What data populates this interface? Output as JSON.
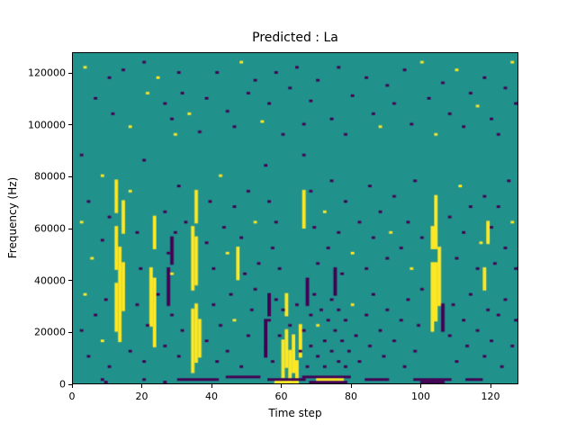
{
  "chart_data": {
    "type": "heatmap",
    "title": "Predicted : La",
    "xlabel": "Time step",
    "ylabel": "Frequency (Hz)",
    "x_range": [
      0,
      128
    ],
    "y_range": [
      0,
      128000
    ],
    "x_ticks": [
      0,
      20,
      40,
      60,
      80,
      100,
      120
    ],
    "y_ticks": [
      0,
      20000,
      40000,
      60000,
      80000,
      100000,
      120000
    ],
    "grid": false,
    "legend": "none",
    "colormap": "viridis-3-level",
    "n_time_steps": 128,
    "n_freq_bins": 128,
    "freq_bin_hz": 1000,
    "value_colors": {
      "0": "#21918c",
      "1": "#440154",
      "2": "#fde725"
    },
    "encoding": "background value 0 = teal; 1 = dark purple (min); 2 = yellow (max); runs_vertical = [x, bin_lo, bin_hi, v]; runs_horizontal = [x_lo, x_hi, bin, v]; cells = [x, bin, v]",
    "runs_vertical": [
      [
        12,
        20,
        38,
        2
      ],
      [
        12,
        44,
        60,
        2
      ],
      [
        12,
        66,
        78,
        2
      ],
      [
        13,
        16,
        52,
        2
      ],
      [
        14,
        28,
        46,
        2
      ],
      [
        14,
        58,
        70,
        2
      ],
      [
        22,
        22,
        44,
        2
      ],
      [
        23,
        14,
        40,
        2
      ],
      [
        23,
        52,
        64,
        2
      ],
      [
        34,
        4,
        28,
        2
      ],
      [
        34,
        36,
        60,
        2
      ],
      [
        35,
        8,
        30,
        2
      ],
      [
        35,
        38,
        56,
        2
      ],
      [
        35,
        62,
        74,
        2
      ],
      [
        36,
        10,
        24,
        2
      ],
      [
        47,
        40,
        52,
        2
      ],
      [
        60,
        2,
        16,
        2
      ],
      [
        61,
        6,
        20,
        2
      ],
      [
        61,
        26,
        34,
        2
      ],
      [
        62,
        0,
        12,
        2
      ],
      [
        63,
        4,
        18,
        2
      ],
      [
        64,
        0,
        8,
        2
      ],
      [
        65,
        10,
        22,
        2
      ],
      [
        66,
        60,
        74,
        2
      ],
      [
        103,
        20,
        46,
        2
      ],
      [
        103,
        52,
        60,
        2
      ],
      [
        104,
        24,
        46,
        2
      ],
      [
        104,
        52,
        72,
        2
      ],
      [
        105,
        30,
        52,
        2
      ],
      [
        118,
        36,
        44,
        2
      ],
      [
        119,
        54,
        62,
        2
      ],
      [
        27,
        30,
        44,
        1
      ],
      [
        28,
        46,
        56,
        1
      ],
      [
        55,
        10,
        24,
        1
      ],
      [
        56,
        26,
        34,
        1
      ],
      [
        67,
        30,
        40,
        1
      ],
      [
        75,
        34,
        44,
        1
      ],
      [
        106,
        20,
        30,
        1
      ]
    ],
    "runs_horizontal": [
      [
        30,
        41,
        1,
        1
      ],
      [
        44,
        53,
        2,
        1
      ],
      [
        56,
        66,
        1,
        1
      ],
      [
        58,
        64,
        0,
        2
      ],
      [
        66,
        79,
        2,
        1
      ],
      [
        68,
        78,
        0,
        1
      ],
      [
        70,
        77,
        1,
        2
      ],
      [
        84,
        90,
        1,
        1
      ],
      [
        98,
        108,
        1,
        1
      ],
      [
        100,
        106,
        0,
        1
      ],
      [
        113,
        117,
        1,
        1
      ]
    ],
    "cells": [
      [
        3,
        122,
        2
      ],
      [
        6,
        110,
        1
      ],
      [
        10,
        118,
        1
      ],
      [
        11,
        104,
        1
      ],
      [
        14,
        121,
        1
      ],
      [
        16,
        99,
        2
      ],
      [
        20,
        124,
        1
      ],
      [
        21,
        112,
        2
      ],
      [
        24,
        118,
        2
      ],
      [
        26,
        108,
        1
      ],
      [
        28,
        102,
        1
      ],
      [
        29,
        96,
        2
      ],
      [
        30,
        120,
        1
      ],
      [
        31,
        112,
        1
      ],
      [
        33,
        104,
        2
      ],
      [
        36,
        97,
        1
      ],
      [
        38,
        110,
        1
      ],
      [
        41,
        120,
        1
      ],
      [
        44,
        105,
        1
      ],
      [
        46,
        99,
        1
      ],
      [
        48,
        124,
        2
      ],
      [
        50,
        112,
        1
      ],
      [
        52,
        117,
        1
      ],
      [
        54,
        101,
        2
      ],
      [
        56,
        108,
        1
      ],
      [
        58,
        120,
        1
      ],
      [
        60,
        96,
        1
      ],
      [
        62,
        114,
        1
      ],
      [
        64,
        122,
        1
      ],
      [
        66,
        100,
        1
      ],
      [
        68,
        109,
        1
      ],
      [
        70,
        117,
        1
      ],
      [
        74,
        102,
        1
      ],
      [
        76,
        122,
        1
      ],
      [
        78,
        96,
        1
      ],
      [
        80,
        111,
        1
      ],
      [
        84,
        118,
        1
      ],
      [
        86,
        104,
        1
      ],
      [
        88,
        99,
        2
      ],
      [
        90,
        115,
        1
      ],
      [
        92,
        108,
        1
      ],
      [
        95,
        121,
        1
      ],
      [
        97,
        100,
        1
      ],
      [
        100,
        124,
        2
      ],
      [
        102,
        110,
        1
      ],
      [
        104,
        96,
        2
      ],
      [
        106,
        116,
        1
      ],
      [
        108,
        104,
        1
      ],
      [
        110,
        121,
        2
      ],
      [
        112,
        99,
        1
      ],
      [
        114,
        112,
        1
      ],
      [
        116,
        107,
        2
      ],
      [
        118,
        118,
        1
      ],
      [
        120,
        102,
        1
      ],
      [
        122,
        96,
        1
      ],
      [
        124,
        114,
        1
      ],
      [
        126,
        124,
        2
      ],
      [
        127,
        108,
        1
      ],
      [
        2,
        88,
        1
      ],
      [
        2,
        62,
        2
      ],
      [
        4,
        70,
        1
      ],
      [
        5,
        48,
        2
      ],
      [
        8,
        80,
        2
      ],
      [
        8,
        55,
        1
      ],
      [
        10,
        64,
        1
      ],
      [
        16,
        74,
        2
      ],
      [
        18,
        58,
        1
      ],
      [
        19,
        44,
        1
      ],
      [
        20,
        86,
        1
      ],
      [
        26,
        66,
        1
      ],
      [
        27,
        50,
        1
      ],
      [
        28,
        42,
        2
      ],
      [
        29,
        58,
        1
      ],
      [
        30,
        76,
        1
      ],
      [
        32,
        62,
        1
      ],
      [
        38,
        54,
        1
      ],
      [
        39,
        70,
        1
      ],
      [
        40,
        44,
        1
      ],
      [
        42,
        80,
        2
      ],
      [
        43,
        60,
        1
      ],
      [
        44,
        50,
        2
      ],
      [
        46,
        68,
        1
      ],
      [
        48,
        56,
        1
      ],
      [
        49,
        42,
        1
      ],
      [
        50,
        74,
        1
      ],
      [
        52,
        62,
        2
      ],
      [
        53,
        46,
        1
      ],
      [
        55,
        84,
        1
      ],
      [
        56,
        70,
        1
      ],
      [
        57,
        52,
        1
      ],
      [
        58,
        62,
        1
      ],
      [
        59,
        44,
        1
      ],
      [
        66,
        88,
        1
      ],
      [
        68,
        74,
        1
      ],
      [
        69,
        60,
        1
      ],
      [
        70,
        46,
        1
      ],
      [
        72,
        66,
        2
      ],
      [
        73,
        52,
        1
      ],
      [
        74,
        78,
        1
      ],
      [
        76,
        58,
        1
      ],
      [
        77,
        42,
        1
      ],
      [
        78,
        70,
        1
      ],
      [
        80,
        50,
        2
      ],
      [
        82,
        62,
        1
      ],
      [
        84,
        44,
        1
      ],
      [
        85,
        76,
        1
      ],
      [
        86,
        56,
        1
      ],
      [
        88,
        66,
        1
      ],
      [
        90,
        48,
        1
      ],
      [
        91,
        58,
        2
      ],
      [
        92,
        72,
        1
      ],
      [
        94,
        52,
        1
      ],
      [
        96,
        62,
        1
      ],
      [
        97,
        44,
        2
      ],
      [
        98,
        78,
        1
      ],
      [
        100,
        56,
        1
      ],
      [
        108,
        64,
        1
      ],
      [
        110,
        48,
        1
      ],
      [
        111,
        76,
        2
      ],
      [
        112,
        58,
        1
      ],
      [
        114,
        68,
        1
      ],
      [
        116,
        44,
        1
      ],
      [
        117,
        54,
        2
      ],
      [
        118,
        72,
        1
      ],
      [
        120,
        60,
        1
      ],
      [
        121,
        46,
        1
      ],
      [
        122,
        68,
        1
      ],
      [
        124,
        52,
        1
      ],
      [
        125,
        78,
        1
      ],
      [
        126,
        62,
        2
      ],
      [
        127,
        44,
        1
      ],
      [
        2,
        20,
        1
      ],
      [
        3,
        34,
        2
      ],
      [
        4,
        10,
        1
      ],
      [
        6,
        26,
        1
      ],
      [
        8,
        16,
        2
      ],
      [
        9,
        32,
        1
      ],
      [
        10,
        6,
        1
      ],
      [
        16,
        12,
        1
      ],
      [
        18,
        30,
        1
      ],
      [
        20,
        8,
        1
      ],
      [
        21,
        22,
        1
      ],
      [
        24,
        34,
        1
      ],
      [
        26,
        14,
        1
      ],
      [
        28,
        26,
        1
      ],
      [
        30,
        10,
        1
      ],
      [
        31,
        20,
        1
      ],
      [
        38,
        16,
        1
      ],
      [
        40,
        30,
        1
      ],
      [
        41,
        8,
        1
      ],
      [
        42,
        22,
        1
      ],
      [
        44,
        12,
        1
      ],
      [
        45,
        34,
        1
      ],
      [
        46,
        24,
        2
      ],
      [
        48,
        6,
        1
      ],
      [
        50,
        18,
        1
      ],
      [
        51,
        28,
        1
      ],
      [
        52,
        36,
        1
      ],
      [
        55,
        14,
        1
      ],
      [
        56,
        24,
        1
      ],
      [
        57,
        8,
        1
      ],
      [
        58,
        32,
        1
      ],
      [
        59,
        18,
        1
      ],
      [
        60,
        28,
        1
      ],
      [
        62,
        22,
        1
      ],
      [
        64,
        30,
        1
      ],
      [
        65,
        12,
        1
      ],
      [
        66,
        20,
        1
      ],
      [
        67,
        6,
        1
      ],
      [
        68,
        26,
        1
      ],
      [
        68,
        14,
        1
      ],
      [
        69,
        34,
        1
      ],
      [
        70,
        10,
        1
      ],
      [
        70,
        22,
        2
      ],
      [
        71,
        28,
        1
      ],
      [
        72,
        16,
        1
      ],
      [
        72,
        6,
        1
      ],
      [
        73,
        24,
        1
      ],
      [
        74,
        12,
        1
      ],
      [
        74,
        32,
        1
      ],
      [
        75,
        20,
        1
      ],
      [
        76,
        8,
        1
      ],
      [
        76,
        28,
        1
      ],
      [
        77,
        16,
        1
      ],
      [
        78,
        24,
        1
      ],
      [
        78,
        6,
        1
      ],
      [
        79,
        12,
        1
      ],
      [
        80,
        30,
        2
      ],
      [
        81,
        18,
        1
      ],
      [
        82,
        8,
        1
      ],
      [
        84,
        26,
        1
      ],
      [
        85,
        14,
        1
      ],
      [
        86,
        34,
        1
      ],
      [
        88,
        20,
        1
      ],
      [
        89,
        10,
        1
      ],
      [
        90,
        28,
        1
      ],
      [
        92,
        16,
        1
      ],
      [
        94,
        24,
        1
      ],
      [
        95,
        6,
        1
      ],
      [
        96,
        32,
        1
      ],
      [
        98,
        12,
        1
      ],
      [
        99,
        22,
        1
      ],
      [
        100,
        36,
        1
      ],
      [
        108,
        18,
        1
      ],
      [
        109,
        30,
        1
      ],
      [
        110,
        8,
        1
      ],
      [
        112,
        24,
        1
      ],
      [
        113,
        14,
        1
      ],
      [
        114,
        34,
        1
      ],
      [
        116,
        20,
        1
      ],
      [
        118,
        10,
        1
      ],
      [
        119,
        28,
        1
      ],
      [
        120,
        16,
        1
      ],
      [
        122,
        26,
        1
      ],
      [
        123,
        6,
        1
      ],
      [
        124,
        32,
        1
      ],
      [
        126,
        14,
        1
      ],
      [
        127,
        24,
        1
      ],
      [
        8,
        1,
        1
      ],
      [
        9,
        0,
        1
      ],
      [
        20,
        1,
        1
      ],
      [
        26,
        0,
        1
      ]
    ]
  }
}
